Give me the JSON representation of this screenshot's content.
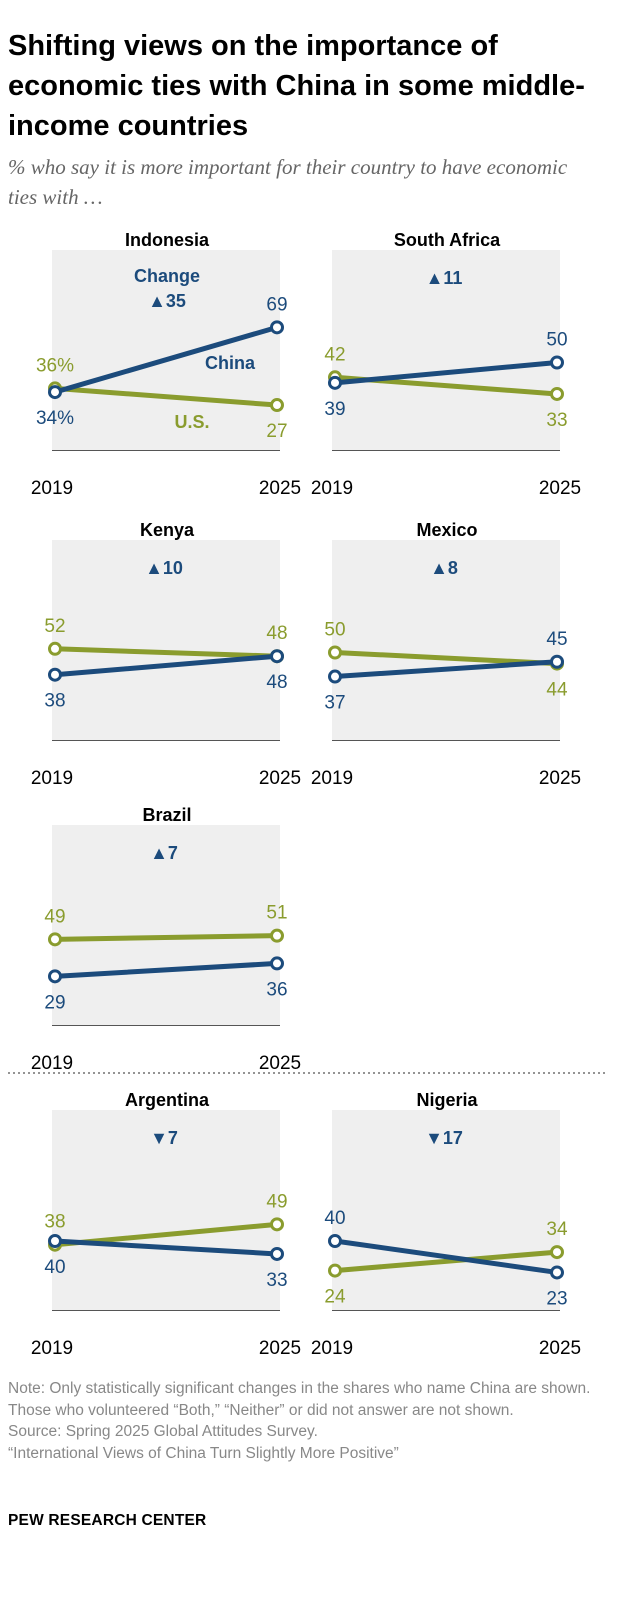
{
  "title": "Shifting views on the importance of economic ties with China in some middle-income countries",
  "subtitle": "% who say it is more important for their country to have economic ties with …",
  "colors": {
    "china": "#1c4b7c",
    "us": "#8a9c2e",
    "panel_bg": "#efefef",
    "axis": "#555555"
  },
  "chart_data": [
    {
      "type": "line",
      "country": "Indonesia",
      "x": [
        "2019",
        "2025"
      ],
      "change": "35",
      "direction": "up",
      "show_change_label": true,
      "series": [
        {
          "name": "China",
          "values": [
            34,
            69
          ]
        },
        {
          "name": "U.S.",
          "values": [
            36,
            27
          ]
        }
      ],
      "labels": {
        "china": [
          "34%",
          "69"
        ],
        "us": [
          "36%",
          "27"
        ]
      }
    },
    {
      "type": "line",
      "country": "South Africa",
      "x": [
        "2019",
        "2025"
      ],
      "change": "11",
      "direction": "up",
      "show_change_label": false,
      "series": [
        {
          "values": [
            39,
            50
          ]
        },
        {
          "values": [
            42,
            33
          ]
        }
      ],
      "labels": {
        "china": [
          "39",
          "50"
        ],
        "us": [
          "42",
          "33"
        ]
      }
    },
    {
      "type": "line",
      "country": "Kenya",
      "x": [
        "2019",
        "2025"
      ],
      "change": "10",
      "direction": "up",
      "show_change_label": false,
      "series": [
        {
          "values": [
            38,
            48
          ]
        },
        {
          "values": [
            52,
            48
          ]
        }
      ],
      "labels": {
        "china": [
          "38",
          "48"
        ],
        "us": [
          "52",
          "48"
        ]
      }
    },
    {
      "type": "line",
      "country": "Mexico",
      "x": [
        "2019",
        "2025"
      ],
      "change": "8",
      "direction": "up",
      "show_change_label": false,
      "series": [
        {
          "values": [
            37,
            45
          ]
        },
        {
          "values": [
            50,
            44
          ]
        }
      ],
      "labels": {
        "china": [
          "37",
          "45"
        ],
        "us": [
          "50",
          "44"
        ]
      }
    },
    {
      "type": "line",
      "country": "Brazil",
      "x": [
        "2019",
        "2025"
      ],
      "change": "7",
      "direction": "up",
      "show_change_label": false,
      "series": [
        {
          "values": [
            29,
            36
          ]
        },
        {
          "values": [
            49,
            51
          ]
        }
      ],
      "labels": {
        "china": [
          "29",
          "36"
        ],
        "us": [
          "49",
          "51"
        ]
      }
    },
    {
      "type": "line",
      "country": "Argentina",
      "x": [
        "2019",
        "2025"
      ],
      "change": "7",
      "direction": "down",
      "show_change_label": false,
      "series": [
        {
          "values": [
            40,
            33
          ]
        },
        {
          "values": [
            38,
            49
          ]
        }
      ],
      "labels": {
        "china": [
          "40",
          "33"
        ],
        "us": [
          "38",
          "49"
        ]
      }
    },
    {
      "type": "line",
      "country": "Nigeria",
      "x": [
        "2019",
        "2025"
      ],
      "change": "17",
      "direction": "down",
      "show_change_label": false,
      "series": [
        {
          "values": [
            40,
            23
          ]
        },
        {
          "values": [
            24,
            34
          ]
        }
      ],
      "labels": {
        "china": [
          "40",
          "23"
        ],
        "us": [
          "24",
          "34"
        ]
      }
    }
  ],
  "change_label": "Change",
  "china_label": "China",
  "us_label": "U.S.",
  "notes": {
    "note": "Note: Only statistically significant changes in the shares who name China are shown. Those who volunteered “Both,” “Neither” or did not answer are not shown.",
    "source": "Source: Spring 2025 Global Attitudes Survey.",
    "report": "“International Views of China Turn Slightly More Positive”"
  },
  "brand": "PEW RESEARCH CENTER"
}
